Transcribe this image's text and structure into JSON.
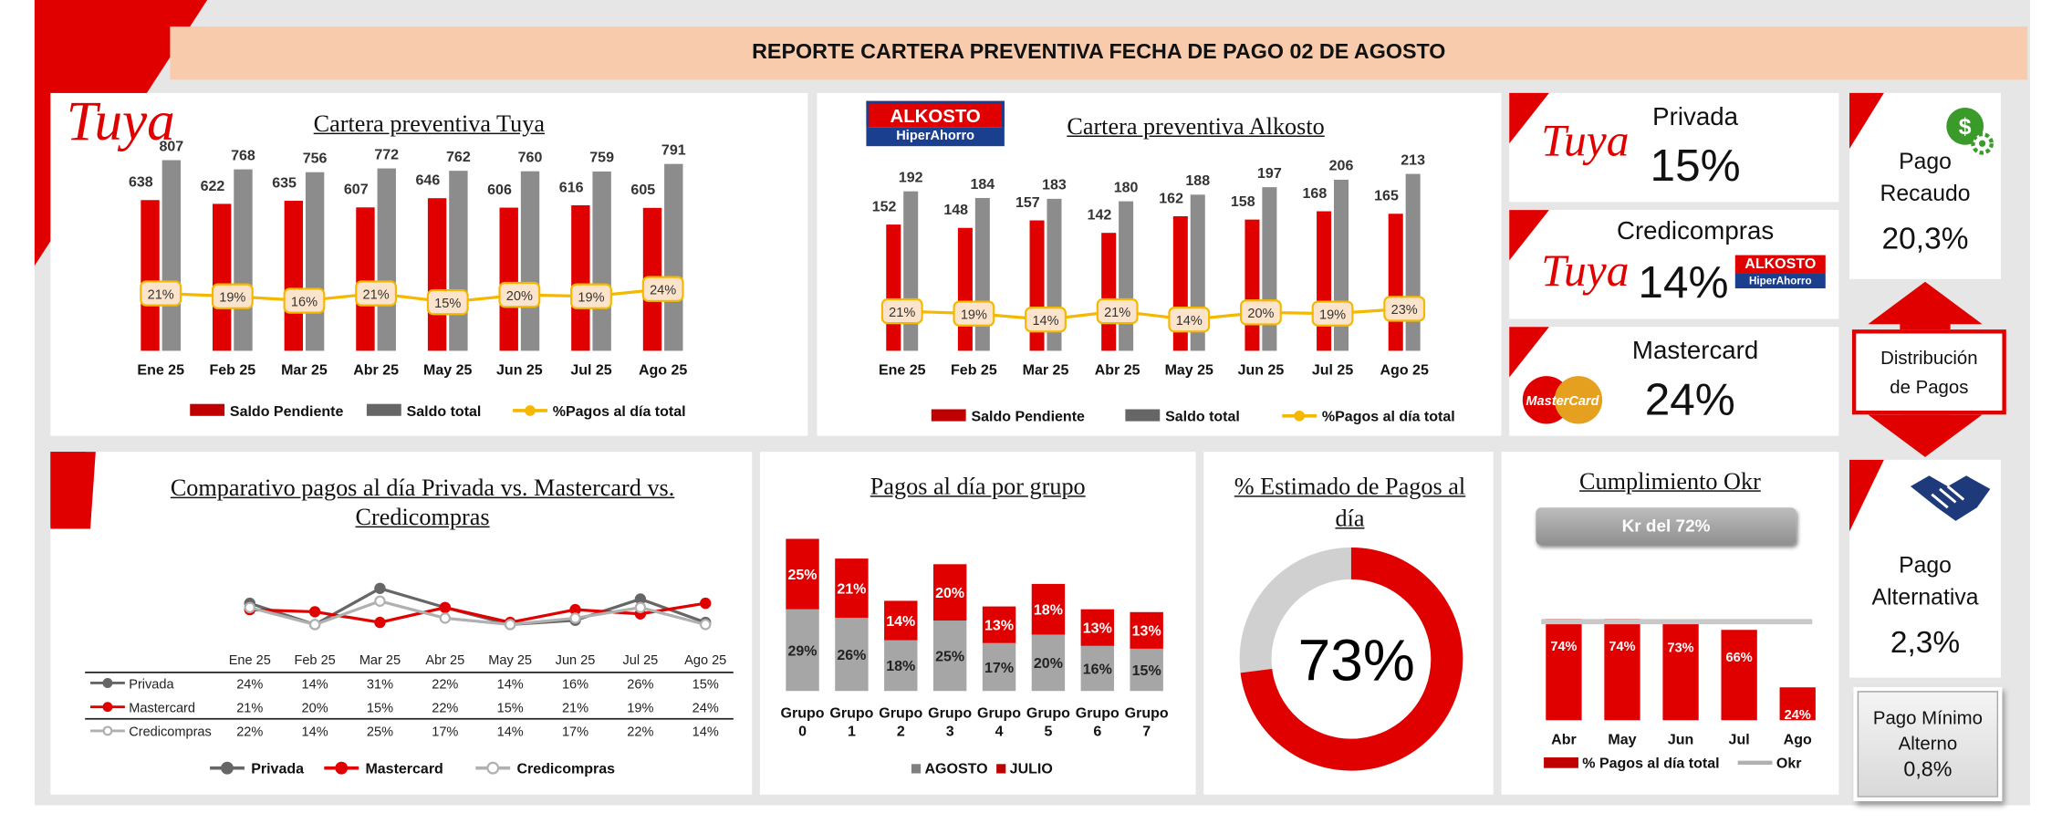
{
  "report_title": "REPORTE CARTERA PREVENTIVA FECHA DE PAGO 02 DE AGOSTO",
  "months": [
    "Ene 25",
    "Feb 25",
    "Mar 25",
    "Abr 25",
    "May 25",
    "Jun 25",
    "Jul 25",
    "Ago 25"
  ],
  "brands": {
    "tuya": "Tuya",
    "alkosto_top": "ALKOSTO",
    "alkosto_bottom": "HiperAhorro",
    "mastercard": "MasterCard"
  },
  "colors": {
    "red": "#e10000",
    "gray": "#8c8c8c",
    "yellow": "#f5b800",
    "dark_red": "#c00000"
  },
  "icons": [
    "dollar-gear-icon",
    "handshake-icon",
    "double-arrow-icon"
  ],
  "chart_data": [
    {
      "id": "tuya",
      "type": "bar",
      "title": "Cartera preventiva Tuya",
      "categories": [
        "Ene 25",
        "Feb 25",
        "Mar 25",
        "Abr 25",
        "May 25",
        "Jun 25",
        "Jul 25",
        "Ago 25"
      ],
      "series": [
        {
          "name": "Saldo Pendiente",
          "values": [
            638,
            622,
            635,
            607,
            646,
            606,
            616,
            605
          ]
        },
        {
          "name": "Saldo total",
          "values": [
            807,
            768,
            756,
            772,
            762,
            760,
            759,
            791
          ]
        },
        {
          "name": "%Pagos al día total",
          "values": [
            21,
            19,
            16,
            21,
            15,
            20,
            19,
            24
          ],
          "unit": "%",
          "kind": "line"
        }
      ],
      "ylim": [
        0,
        900
      ],
      "legend": "bottom"
    },
    {
      "id": "alkosto",
      "type": "bar",
      "title": "Cartera preventiva Alkosto",
      "categories": [
        "Ene 25",
        "Feb 25",
        "Mar 25",
        "Abr 25",
        "May 25",
        "Jun 25",
        "Jul 25",
        "Ago 25"
      ],
      "series": [
        {
          "name": "Saldo Pendiente",
          "values": [
            152,
            148,
            157,
            142,
            162,
            158,
            168,
            165
          ]
        },
        {
          "name": "Saldo total",
          "values": [
            192,
            184,
            183,
            180,
            188,
            197,
            206,
            213
          ]
        },
        {
          "name": "%Pagos al día total",
          "values": [
            21,
            19,
            14,
            21,
            14,
            20,
            19,
            23
          ],
          "unit": "%",
          "kind": "line"
        }
      ],
      "ylim": [
        0,
        240
      ],
      "legend": "bottom"
    },
    {
      "id": "comparativo",
      "type": "line",
      "title": "Comparativo pagos al día Privada vs. Mastercard vs. Credicompras",
      "categories": [
        "Ene 25",
        "Feb 25",
        "Mar 25",
        "Abr 25",
        "May 25",
        "Jun 25",
        "Jul 25",
        "Ago 25"
      ],
      "series": [
        {
          "name": "Privada",
          "values": [
            24,
            14,
            31,
            22,
            14,
            16,
            26,
            15
          ]
        },
        {
          "name": "Mastercard",
          "values": [
            21,
            20,
            15,
            22,
            15,
            21,
            19,
            24
          ]
        },
        {
          "name": "Credicompras",
          "values": [
            22,
            14,
            25,
            17,
            14,
            17,
            22,
            14
          ]
        }
      ],
      "unit": "%",
      "legend": "bottom",
      "table": true
    },
    {
      "id": "grupos",
      "type": "bar",
      "stacked": true,
      "title": "Pagos al día por grupo",
      "categories": [
        "Grupo 0",
        "Grupo 1",
        "Grupo 2",
        "Grupo 3",
        "Grupo 4",
        "Grupo 5",
        "Grupo 6",
        "Grupo 7"
      ],
      "series": [
        {
          "name": "AGOSTO",
          "values": [
            29,
            26,
            18,
            25,
            17,
            20,
            16,
            15
          ]
        },
        {
          "name": "JULIO",
          "values": [
            25,
            21,
            14,
            20,
            13,
            18,
            13,
            13
          ]
        }
      ],
      "unit": "%",
      "legend": "bottom"
    },
    {
      "id": "estimado",
      "type": "pie",
      "donut": true,
      "title": "% Estimado de Pagos al día",
      "values": [
        73,
        27
      ],
      "center_label": "73%"
    },
    {
      "id": "okr",
      "type": "bar",
      "title": "Cumplimiento Okr",
      "categories": [
        "Abr",
        "May",
        "Jun",
        "Jul",
        "Ago"
      ],
      "series": [
        {
          "name": "% Pagos al día total",
          "values": [
            74,
            74,
            73,
            66,
            24
          ]
        },
        {
          "name": "Okr",
          "values": [
            72,
            72,
            72,
            72,
            72
          ],
          "kind": "line"
        }
      ],
      "kr_label": "Kr del 72%",
      "unit": "%",
      "ylim": [
        0,
        80
      ],
      "legend": "bottom"
    }
  ],
  "kpis": {
    "privada": {
      "label": "Privada",
      "value": "15%"
    },
    "credicompras": {
      "label": "Credicompras",
      "value": "14%"
    },
    "mastercard": {
      "label": "Mastercard",
      "value": "24%"
    },
    "pago_recaudo": {
      "label_line1": "Pago",
      "label_line2": "Recaudo",
      "value": "20,3%"
    },
    "distribucion": {
      "line1": "Distribución",
      "line2": "de Pagos"
    },
    "pago_alternativa": {
      "label_line1": "Pago",
      "label_line2": "Alternativa",
      "value": "2,3%"
    },
    "pago_minimo": {
      "line1": "Pago Mínimo",
      "line2": "Alterno",
      "value": "0,8%"
    }
  }
}
